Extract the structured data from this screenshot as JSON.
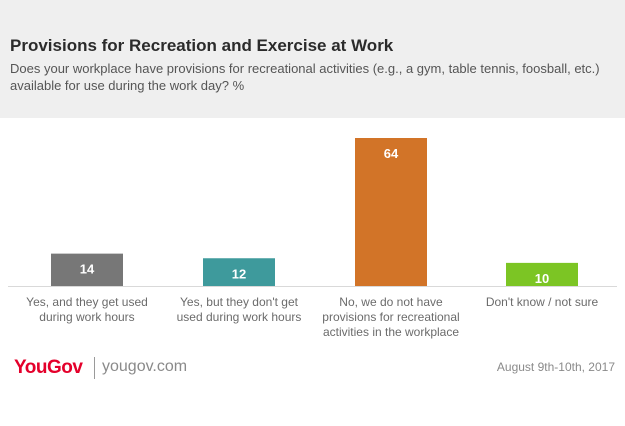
{
  "header": {
    "title": "Provisions for Recreation and Exercise at Work",
    "subtitle": "Does your workplace have provisions for recreational activities (e.g., a gym, table tennis, foosball, etc.) available for use during the work day? %"
  },
  "chart_data": {
    "type": "bar",
    "title": "Provisions for Recreation and Exercise at Work",
    "xlabel": "",
    "ylabel": "%",
    "ylim": [
      0,
      64
    ],
    "categories": [
      [
        "Yes, and they get used",
        "during work hours"
      ],
      [
        "Yes, but they don't get",
        "used during work hours"
      ],
      [
        "No, we do not have",
        "provisions  for recreational",
        "activities in the workplace"
      ],
      [
        "Don't know / not sure"
      ]
    ],
    "values": [
      14,
      12,
      64,
      10
    ],
    "colors": [
      "#777777",
      "#3e9a9c",
      "#d27428",
      "#7cc524"
    ]
  },
  "footer": {
    "logo_you": "You",
    "logo_gov": "Gov",
    "site": "yougov.com",
    "date": "August 9th-10th, 2017"
  }
}
